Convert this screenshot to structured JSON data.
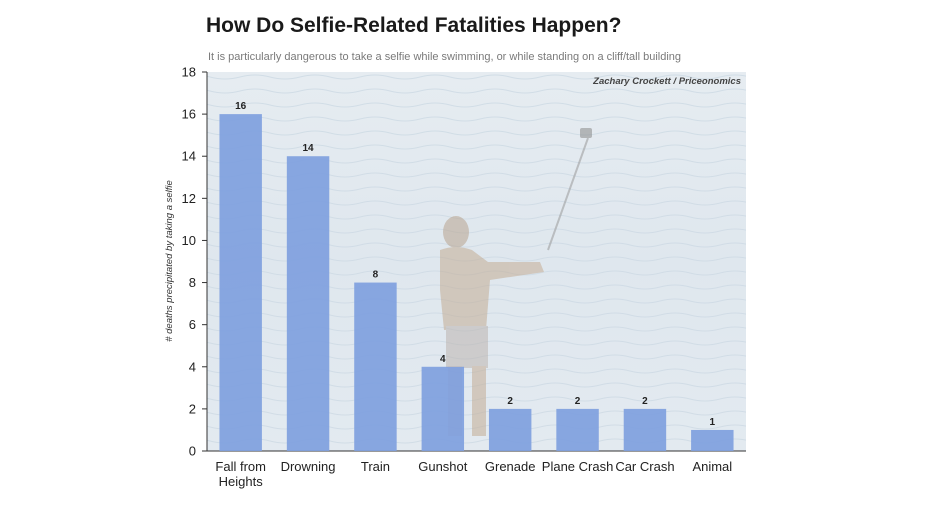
{
  "chart_data": {
    "type": "bar",
    "title": "How Do Selfie-Related Fatalities Happen?",
    "subtitle": "It is particularly dangerous to take a selfie while swimming, or while standing on a cliff/tall building",
    "credit": "Zachary Crockett / Priceonomics",
    "xlabel": "",
    "ylabel": "# deaths precipitated by taking a selfie",
    "ylim": [
      0,
      18
    ],
    "yticks": [
      0,
      2,
      4,
      6,
      8,
      10,
      12,
      14,
      16,
      18
    ],
    "categories": [
      [
        "Fall from",
        "Heights"
      ],
      [
        "Drowning"
      ],
      [
        "Train"
      ],
      [
        "Gunshot"
      ],
      [
        "Grenade"
      ],
      [
        "Plane Crash"
      ],
      [
        "Car Crash"
      ],
      [
        "Animal"
      ]
    ],
    "values": [
      16,
      14,
      8,
      4,
      2,
      2,
      2,
      1
    ],
    "bar_color": "#7f9fde",
    "background": "photo of a man on a beach taking a selfie with a selfie stick, washed out"
  }
}
